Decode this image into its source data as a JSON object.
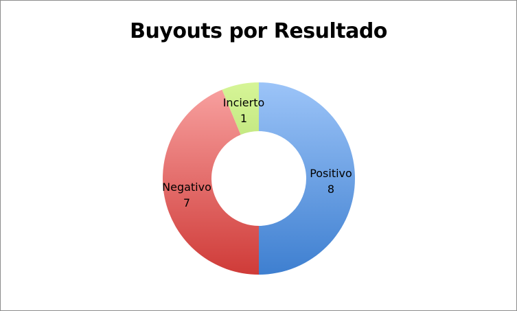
{
  "chart_data": {
    "type": "pie",
    "donut": true,
    "title": "Buyouts por Resultado",
    "categories": [
      "Positivo",
      "Negativo",
      "Incierto"
    ],
    "values": [
      8,
      7,
      1
    ],
    "colors": [
      {
        "top": "#9cc4f8",
        "bottom": "#3e7fd0"
      },
      {
        "top": "#f9a3a2",
        "bottom": "#cf3b38"
      },
      {
        "top": "#d6f597",
        "bottom": "#97c84e"
      }
    ],
    "start_angle": "top",
    "direction": "clockwise",
    "legend": "none",
    "data_labels": "category and value"
  }
}
